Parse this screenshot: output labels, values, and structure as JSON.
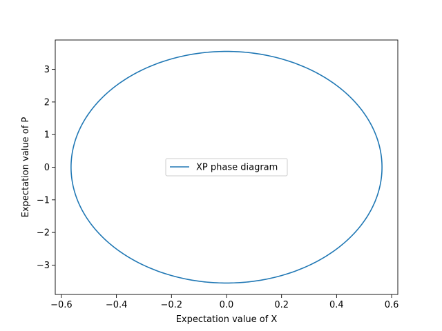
{
  "chart_data": {
    "type": "line",
    "xlabel": "Expectation value of X",
    "ylabel": "Expectation value of P",
    "xlim": [
      -0.6224,
      0.6224
    ],
    "ylim": [
      -3.9,
      3.9
    ],
    "x_ticks": [
      -0.6,
      -0.4,
      -0.2,
      0.0,
      0.2,
      0.4,
      0.6
    ],
    "x_tick_labels": [
      "−0.6",
      "−0.4",
      "−0.2",
      "0.0",
      "0.2",
      "0.4",
      "0.6"
    ],
    "y_ticks": [
      -3,
      -2,
      -1,
      0,
      1,
      2,
      3
    ],
    "y_tick_labels": [
      "−3",
      "−2",
      "−1",
      "0",
      "1",
      "2",
      "3"
    ],
    "grid": false,
    "legend_position": "center",
    "series": [
      {
        "name": "XP phase diagram",
        "color": "#1f77b4",
        "shape": "ellipse",
        "x_amplitude": 0.565,
        "y_amplitude": 3.55,
        "start": [
          0.565,
          0.0
        ],
        "x": [
          0.565,
          0.4895,
          0.2825,
          0.0,
          -0.2825,
          -0.4895,
          -0.565,
          -0.4895,
          -0.2825,
          0.0,
          0.2825,
          0.4895,
          0.565
        ],
        "y": [
          0.0,
          1.775,
          3.0744,
          3.55,
          3.0744,
          1.775,
          0.0,
          -1.775,
          -3.0744,
          -3.55,
          -3.0744,
          -1.775,
          0.0
        ]
      }
    ]
  }
}
